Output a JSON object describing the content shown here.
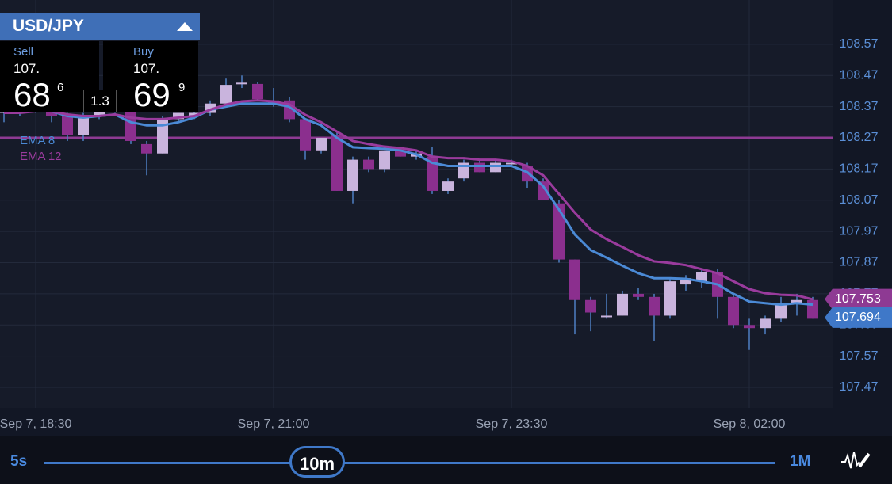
{
  "header": {
    "pair": "USD/JPY"
  },
  "quote": {
    "sell_label": "Sell",
    "sell_prefix": "107.",
    "sell_pips": "68",
    "sell_frac": "6",
    "spread": "1.3",
    "buy_label": "Buy",
    "buy_prefix": "107.",
    "buy_pips": "69",
    "buy_frac": "9"
  },
  "timeframes": {
    "min": "5s",
    "current": "10m",
    "max": "1M"
  },
  "chart_data": {
    "type": "candlestick",
    "categories": [
      null,
      null,
      "Sep 7, 18:30",
      null,
      null,
      null,
      null,
      null,
      null,
      null,
      null,
      null,
      null,
      null,
      null,
      null,
      null,
      "Sep 7, 21:00",
      null,
      null,
      null,
      null,
      null,
      null,
      null,
      null,
      null,
      null,
      null,
      null,
      null,
      null,
      "Sep 7, 23:30",
      null,
      null,
      null,
      null,
      null,
      null,
      null,
      null,
      null,
      null,
      null,
      null,
      null,
      null,
      "Sep 8, 02:00",
      null,
      null,
      null,
      null
    ],
    "open": [
      108.35,
      108.36,
      108.37,
      108.36,
      108.34,
      108.28,
      108.34,
      108.37,
      108.36,
      108.25,
      108.22,
      108.33,
      108.34,
      108.35,
      108.38,
      108.445,
      108.443,
      108.39,
      108.39,
      108.33,
      108.23,
      108.28,
      108.1,
      108.2,
      108.17,
      108.23,
      108.21,
      108.21,
      108.1,
      108.14,
      108.19,
      108.16,
      108.19,
      108.18,
      108.13,
      108.06,
      107.88,
      107.75,
      107.7,
      107.7,
      107.77,
      107.76,
      107.7,
      107.8,
      107.81,
      107.84,
      107.76,
      107.67,
      107.66,
      107.69,
      107.74,
      107.75
    ],
    "high": [
      108.37,
      108.38,
      108.4,
      108.37,
      108.35,
      108.35,
      108.38,
      108.4,
      108.37,
      108.26,
      108.34,
      108.35,
      108.36,
      108.39,
      108.46,
      108.47,
      108.45,
      108.43,
      108.4,
      108.33,
      108.27,
      108.29,
      108.21,
      108.21,
      108.23,
      108.23,
      108.23,
      108.24,
      108.14,
      108.2,
      108.2,
      108.2,
      108.2,
      108.19,
      108.14,
      108.07,
      107.88,
      107.76,
      107.77,
      107.78,
      107.79,
      107.77,
      107.82,
      107.83,
      107.85,
      107.85,
      107.77,
      107.69,
      107.7,
      107.76,
      107.77,
      107.76
    ],
    "low": [
      108.32,
      108.34,
      108.35,
      108.32,
      108.26,
      108.26,
      108.33,
      108.35,
      108.25,
      108.15,
      108.22,
      108.32,
      108.33,
      108.34,
      108.37,
      108.43,
      108.39,
      108.37,
      108.32,
      108.2,
      108.22,
      108.1,
      108.06,
      108.16,
      108.16,
      108.21,
      108.2,
      108.09,
      108.09,
      108.13,
      108.16,
      108.16,
      108.18,
      108.11,
      108.07,
      107.87,
      107.64,
      107.65,
      107.69,
      107.7,
      107.75,
      107.62,
      107.69,
      107.78,
      107.79,
      107.69,
      107.66,
      107.59,
      107.64,
      107.68,
      107.7,
      107.69
    ],
    "close": [
      108.36,
      108.37,
      108.36,
      108.34,
      108.28,
      108.34,
      108.37,
      108.38,
      108.26,
      108.22,
      108.33,
      108.35,
      108.35,
      108.38,
      108.44,
      108.447,
      108.394,
      108.38,
      108.33,
      108.23,
      108.27,
      108.1,
      108.2,
      108.17,
      108.23,
      108.21,
      108.22,
      108.1,
      108.13,
      108.19,
      108.16,
      108.19,
      108.19,
      108.13,
      108.07,
      107.88,
      107.75,
      107.71,
      107.7,
      107.77,
      107.76,
      107.7,
      107.81,
      107.82,
      107.84,
      107.76,
      107.67,
      107.66,
      107.69,
      107.74,
      107.75,
      107.69
    ],
    "up_color": "#c9b4dd",
    "down_color": "#8b2f8e",
    "wick_color": "#4f80c4",
    "series": [
      {
        "name": "EMA 8",
        "color": "#4b8ad6",
        "values": [
          108.35,
          108.355,
          108.36,
          108.355,
          108.34,
          108.335,
          108.34,
          108.345,
          108.32,
          108.31,
          108.31,
          108.32,
          108.335,
          108.36,
          108.37,
          108.38,
          108.38,
          108.38,
          108.37,
          108.33,
          108.31,
          108.27,
          108.24,
          108.237,
          108.235,
          108.23,
          108.217,
          108.19,
          108.18,
          108.18,
          108.18,
          108.18,
          108.18,
          108.16,
          108.115,
          108.04,
          107.96,
          107.91,
          107.886,
          107.86,
          107.836,
          107.82,
          107.82,
          107.818,
          107.81,
          107.8,
          107.77,
          107.745,
          107.74,
          107.735,
          107.74,
          107.735
        ]
      },
      {
        "name": "EMA 12",
        "color": "#9a3b9d",
        "values": [
          108.35,
          108.35,
          108.355,
          108.355,
          108.345,
          108.34,
          108.34,
          108.345,
          108.335,
          108.33,
          108.33,
          108.335,
          108.34,
          108.36,
          108.377,
          108.387,
          108.39,
          108.387,
          108.377,
          108.344,
          108.32,
          108.29,
          108.26,
          108.25,
          108.242,
          108.237,
          108.23,
          108.21,
          108.205,
          108.205,
          108.2,
          108.2,
          108.195,
          108.18,
          108.15,
          108.09,
          108.03,
          107.976,
          107.945,
          107.92,
          107.894,
          107.874,
          107.869,
          107.862,
          107.849,
          107.836,
          107.81,
          107.785,
          107.772,
          107.767,
          107.765,
          107.752
        ]
      }
    ],
    "level": 108.27,
    "level_color": "#8e3a93",
    "price_tags": [
      {
        "value": 107.753,
        "color": "#8e3a93"
      },
      {
        "value": 107.694,
        "color": "#3f78c8"
      }
    ],
    "ylim": [
      107.404,
      108.712
    ],
    "yticks": [
      108.57,
      108.47,
      108.37,
      108.27,
      108.17,
      108.07,
      107.97,
      107.87,
      107.77,
      107.67,
      107.57,
      107.47
    ],
    "grid": true
  }
}
